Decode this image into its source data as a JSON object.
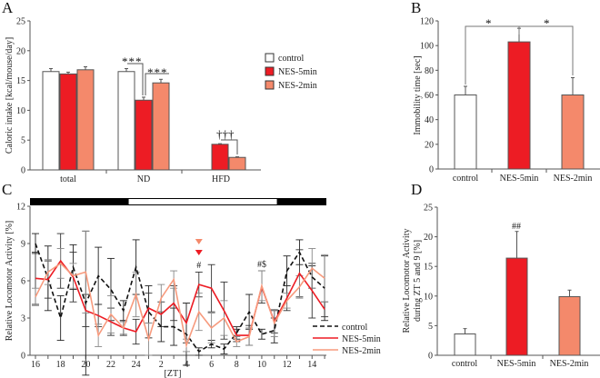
{
  "colors": {
    "control": "#ffffff",
    "nes5": "#ed1c24",
    "nes2": "#f4896b",
    "axis": "#555555",
    "dark": "#111111"
  },
  "chart_data": [
    {
      "panel": "A",
      "type": "bar",
      "ylabel": "Caloric intake [kcal/mouse/day]",
      "ylim": [
        0,
        25
      ],
      "yticks": [
        "0",
        "5",
        "10",
        "15",
        "20",
        "25"
      ],
      "categories": [
        "total",
        "ND",
        "HFD"
      ],
      "legend": [
        "control",
        "NES-5min",
        "NES-2min"
      ],
      "legend_position": "right",
      "series": [
        {
          "name": "control",
          "values": [
            16.5,
            16.5,
            null
          ],
          "errors": [
            0.5,
            0.5,
            null
          ]
        },
        {
          "name": "NES-5min",
          "values": [
            16.1,
            11.7,
            4.3
          ],
          "errors": [
            0.3,
            0.5,
            0.1
          ]
        },
        {
          "name": "NES-2min",
          "values": [
            16.8,
            14.6,
            2.1
          ],
          "errors": [
            0.5,
            0.6,
            0.1
          ]
        }
      ],
      "annotations": [
        "***",
        "***",
        "†††"
      ]
    },
    {
      "panel": "B",
      "type": "bar",
      "ylabel": "Immobility time [sec]",
      "ylim": [
        0,
        120
      ],
      "yticks": [
        "0",
        "20",
        "40",
        "60",
        "80",
        "100",
        "120"
      ],
      "categories": [
        "control",
        "NES-5min",
        "NES-2min"
      ],
      "values": [
        60,
        103,
        60
      ],
      "errors": [
        7,
        11,
        14
      ],
      "annotations": [
        "*",
        "*"
      ]
    },
    {
      "panel": "C",
      "type": "line",
      "ylabel": "Relative Locomotor Activity [%]",
      "xlabel": "[ZT]",
      "ylim": [
        0,
        12
      ],
      "yticks": [
        "0",
        "3",
        "6",
        "9",
        "12"
      ],
      "x": [
        16,
        17,
        18,
        19,
        20,
        21,
        22,
        23,
        24,
        1,
        2,
        3,
        4,
        5,
        6,
        7,
        8,
        9,
        10,
        11,
        12,
        13,
        14,
        15
      ],
      "xticklabels": [
        "16",
        "18",
        "20",
        "22",
        "24",
        "2",
        "4",
        "6",
        "8",
        "10",
        "12",
        "14"
      ],
      "light_phase": [
        0.333,
        0.833
      ],
      "series": [
        {
          "name": "control",
          "style": "dashed",
          "values": [
            9.0,
            6.2,
            3.0,
            7.1,
            4.2,
            6.4,
            5.3,
            3.6,
            7.1,
            3.5,
            2.3,
            2.3,
            1.7,
            0.3,
            0.9,
            0.5,
            1.8,
            3.5,
            1.7,
            2.0,
            6.8,
            8.3,
            6.3,
            5.4
          ],
          "errors": [
            0.8,
            2.6,
            1.8,
            1.8,
            5.8,
            2.3,
            2.5,
            0.8,
            2.2,
            2.1,
            1.2,
            1.5,
            2.5,
            0.3,
            0.3,
            0.4,
            0.5,
            1.4,
            0.4,
            1.0,
            1.2,
            1.0,
            0.9,
            2.6
          ]
        },
        {
          "name": "NES-5min",
          "style": "solid",
          "values": [
            6.2,
            6.1,
            7.6,
            6.3,
            3.6,
            3.2,
            2.7,
            2.2,
            1.9,
            3.8,
            3.3,
            4.2,
            2.6,
            5.7,
            5.4,
            3.6,
            1.6,
            1.6,
            5.5,
            2.7,
            4.6,
            6.6,
            5.2,
            3.7
          ],
          "errors": [
            2.1,
            1.5,
            2.2,
            2.0,
            1.3,
            0.9,
            1.1,
            0.6,
            1.0,
            1.2,
            1.0,
            1.4,
            1.6,
            1.0,
            1.9,
            2.3,
            0.5,
            0.8,
            1.3,
            0.9,
            1.0,
            1.9,
            2.2,
            0.6
          ]
        },
        {
          "name": "NES-2min",
          "style": "solid",
          "values": [
            4.7,
            6.7,
            7.4,
            6.4,
            6.7,
            1.6,
            3.3,
            2.2,
            4.9,
            1.3,
            4.6,
            6.1,
            0.8,
            3.5,
            2.2,
            3.0,
            1.1,
            1.5,
            5.6,
            2.6,
            4.4,
            5.5,
            7.0,
            6.2
          ],
          "errors": [
            0.7,
            1.0,
            1.2,
            1.0,
            3.3,
            0.9,
            1.5,
            0.5,
            1.8,
            1.3,
            1.1,
            0.7,
            0.5,
            1.5,
            1.2,
            1.4,
            0.4,
            0.7,
            1.2,
            1.1,
            0.6,
            0.9,
            1.6,
            1.9
          ]
        }
      ],
      "legend": [
        "control",
        "NES-5min",
        "NES-2min"
      ],
      "legend_position": "bottom-right",
      "annotations": [
        "#",
        "#$"
      ]
    },
    {
      "panel": "D",
      "type": "bar",
      "ylabel": "Relative Locomotor Activity",
      "ylabel2": "during ZT 5 and 9 [%]",
      "ylim": [
        0,
        25
      ],
      "yticks": [
        "0",
        "5",
        "10",
        "15",
        "20",
        "25"
      ],
      "categories": [
        "control",
        "NES-5min",
        "NES-2min"
      ],
      "values": [
        3.6,
        16.4,
        9.9
      ],
      "errors": [
        0.9,
        4.5,
        1.1
      ],
      "annotations": [
        "##"
      ]
    }
  ],
  "panels": [
    "A",
    "B",
    "C",
    "D"
  ]
}
